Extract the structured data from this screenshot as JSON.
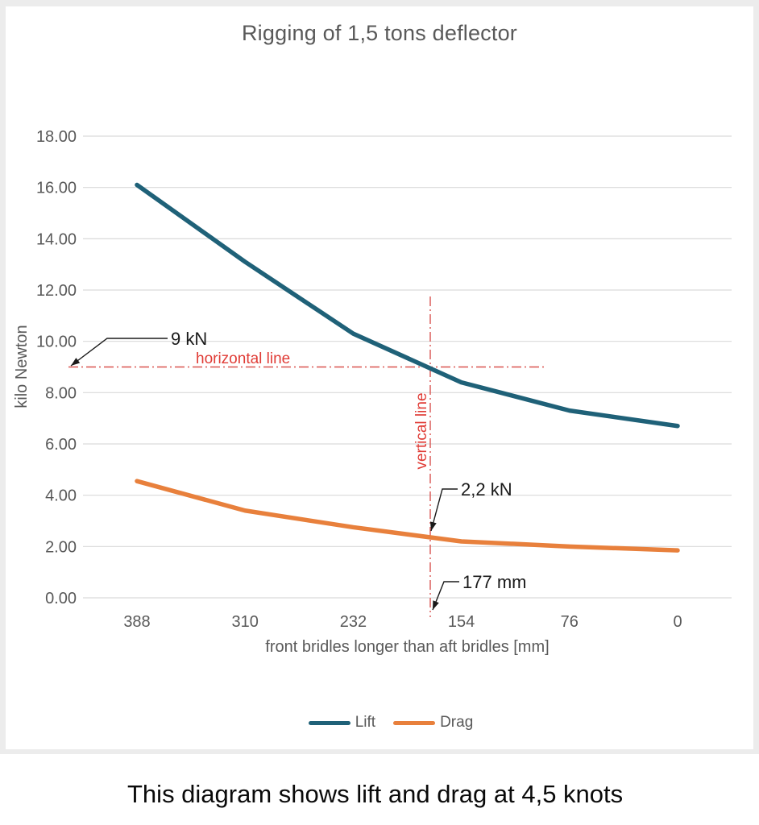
{
  "caption": "This diagram shows lift and drag at 4,5 knots",
  "chart_data": {
    "type": "line",
    "title": "Rigging of 1,5 tons deflector",
    "xlabel": "front bridles longer than aft bridles [mm]",
    "ylabel": "kilo Newton",
    "categories": [
      388,
      310,
      232,
      154,
      76,
      0
    ],
    "x_tick_labels": [
      "388",
      "310",
      "232",
      "154",
      "76",
      "0"
    ],
    "y_tick_labels": [
      "18.00",
      "16.00",
      "14.00",
      "12.00",
      "10.00",
      "8.00",
      "6.00",
      "4.00",
      "2.00",
      "0.00"
    ],
    "ylim": [
      0,
      18
    ],
    "grid": "horizontal",
    "gridline_color": "#d9d9d9",
    "legend_position": "bottom",
    "series": [
      {
        "name": "Lift",
        "color": "#1f6178",
        "values": [
          16.1,
          13.1,
          10.3,
          8.4,
          7.3,
          6.7
        ]
      },
      {
        "name": "Drag",
        "color": "#e8803c",
        "values": [
          4.55,
          3.4,
          2.75,
          2.2,
          2.0,
          1.85
        ]
      }
    ],
    "annotations": {
      "horizontal_line": {
        "value_kn": 9,
        "label": "horizontal line",
        "callout": "9 kN",
        "color": "#d9534f"
      },
      "vertical_line": {
        "value_mm": 177,
        "label": "vertical line",
        "callout": "177 mm",
        "color": "#d9534f"
      },
      "drag_callout": "2,2 kN"
    }
  }
}
